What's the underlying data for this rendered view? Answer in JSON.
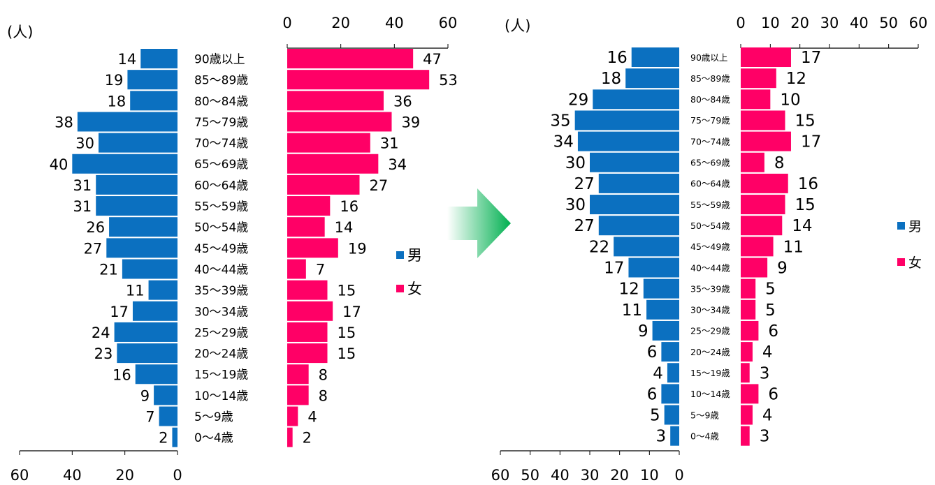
{
  "chart_data": [
    {
      "type": "bar",
      "unit_label": "(人)",
      "categories": [
        "90歳以上",
        "85～89歳",
        "80～84歳",
        "75～79歳",
        "70～74歳",
        "65～69歳",
        "60～64歳",
        "55～59歳",
        "50～54歳",
        "45～49歳",
        "40～44歳",
        "35～39歳",
        "30～34歳",
        "25～29歳",
        "20～24歳",
        "15～19歳",
        "10～14歳",
        "5～9歳",
        "0～4歳"
      ],
      "male_axis_ticks": [
        "60",
        "40",
        "20",
        "0"
      ],
      "female_axis_ticks": [
        "0",
        "20",
        "40",
        "60"
      ],
      "xlim": [
        0,
        60
      ],
      "series": [
        {
          "name": "男",
          "color": "#0b70c0",
          "values": [
            14,
            19,
            18,
            38,
            30,
            40,
            31,
            31,
            26,
            27,
            21,
            11,
            17,
            24,
            23,
            16,
            9,
            7,
            2
          ]
        },
        {
          "name": "女",
          "color": "#ff0066",
          "values": [
            47,
            53,
            36,
            39,
            31,
            34,
            27,
            16,
            14,
            19,
            7,
            15,
            17,
            15,
            15,
            8,
            8,
            4,
            2
          ]
        }
      ]
    },
    {
      "type": "bar",
      "unit_label": "(人)",
      "categories": [
        "90歳以上",
        "85～89歳",
        "80～84歳",
        "75～79歳",
        "70～74歳",
        "65～69歳",
        "60～64歳",
        "55～59歳",
        "50～54歳",
        "45～49歳",
        "40～44歳",
        "35～39歳",
        "30～34歳",
        "25～29歳",
        "20～24歳",
        "15～19歳",
        "10～14歳",
        "5～9歳",
        "0～4歳"
      ],
      "male_axis_ticks": [
        "60",
        "50",
        "40",
        "30",
        "20",
        "10",
        "0"
      ],
      "female_axis_ticks": [
        "0",
        "10",
        "20",
        "30",
        "40",
        "50",
        "60"
      ],
      "xlim": [
        0,
        60
      ],
      "series": [
        {
          "name": "男",
          "color": "#0b70c0",
          "values": [
            16,
            18,
            29,
            35,
            34,
            30,
            27,
            30,
            27,
            22,
            17,
            12,
            11,
            9,
            6,
            4,
            6,
            5,
            3
          ]
        },
        {
          "name": "女",
          "color": "#ff0066",
          "values": [
            17,
            12,
            10,
            15,
            17,
            8,
            16,
            15,
            14,
            11,
            9,
            5,
            5,
            6,
            4,
            3,
            6,
            4,
            3
          ]
        }
      ]
    }
  ],
  "arrow": {
    "color": "#00b050"
  }
}
